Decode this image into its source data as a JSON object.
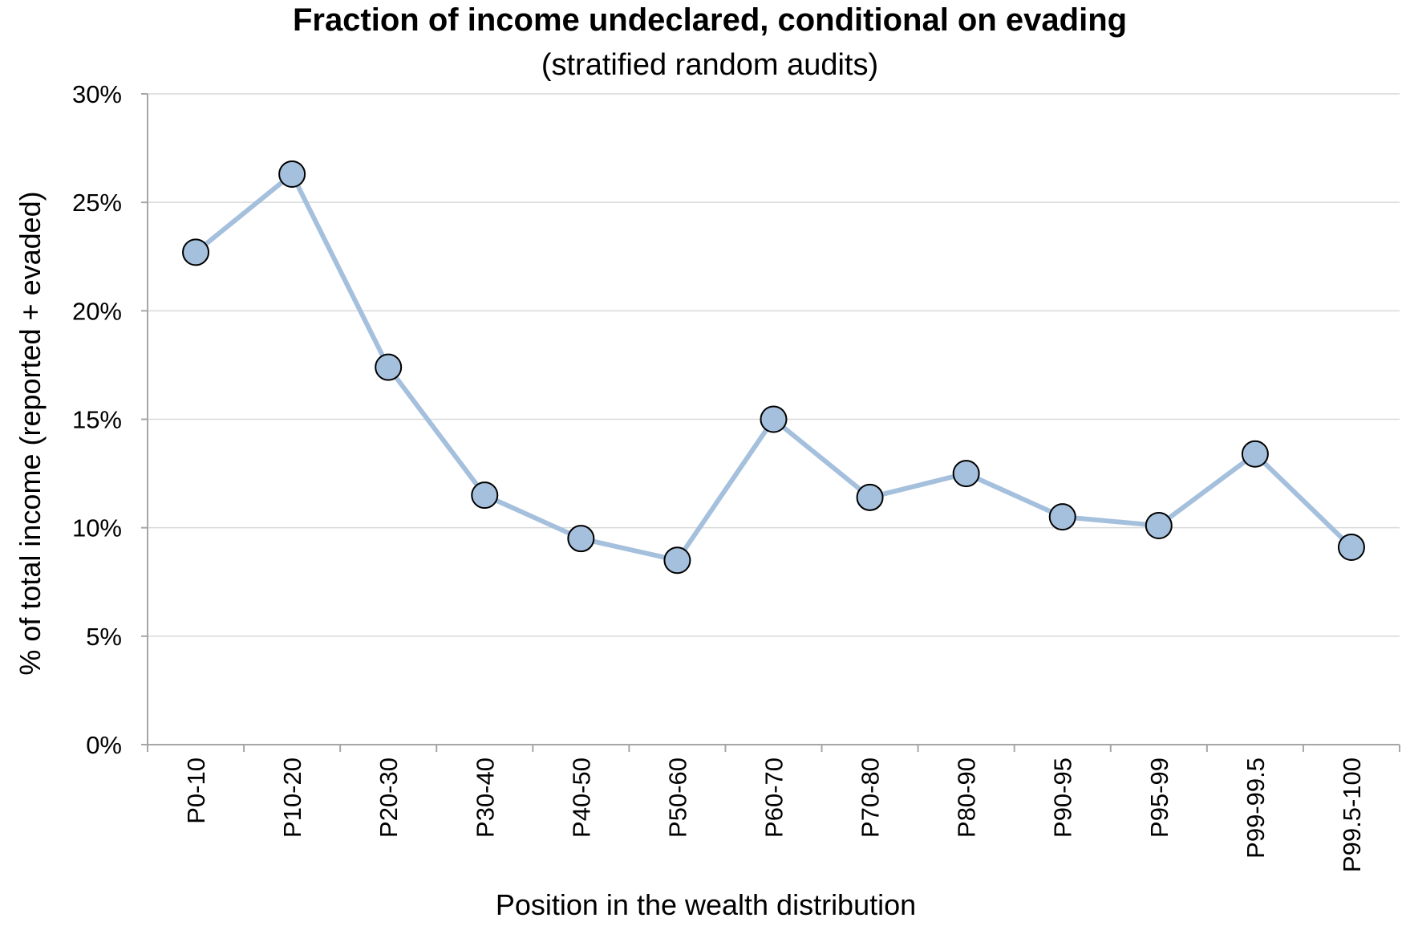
{
  "chart_data": {
    "type": "line",
    "title": "Fraction of income undeclared, conditional on evading",
    "subtitle": "(stratified random audits)",
    "xlabel": "Position in the wealth distribution",
    "ylabel": "% of total income (reported + evaded)",
    "categories": [
      "P0-10",
      "P10-20",
      "P20-30",
      "P30-40",
      "P40-50",
      "P50-60",
      "P60-70",
      "P70-80",
      "P80-90",
      "P90-95",
      "P95-99",
      "P99-99.5",
      "P99.5-100"
    ],
    "series": [
      {
        "values": [
          22.7,
          26.3,
          17.4,
          11.5,
          9.5,
          8.5,
          15.0,
          11.4,
          12.5,
          10.5,
          10.1,
          13.4,
          9.1
        ]
      }
    ],
    "ylim": [
      0,
      30
    ],
    "yticks": [
      0,
      5,
      10,
      15,
      20,
      25,
      30
    ],
    "ytick_labels": [
      "0%",
      "5%",
      "10%",
      "15%",
      "20%",
      "25%",
      "30%"
    ],
    "grid": true,
    "legend": "none",
    "colors": {
      "line": "#a5c0dd",
      "marker_fill": "#a5c0dd",
      "marker_edge": "#000000",
      "grid": "#d9d9d9",
      "axis": "#a6a6a6"
    }
  }
}
